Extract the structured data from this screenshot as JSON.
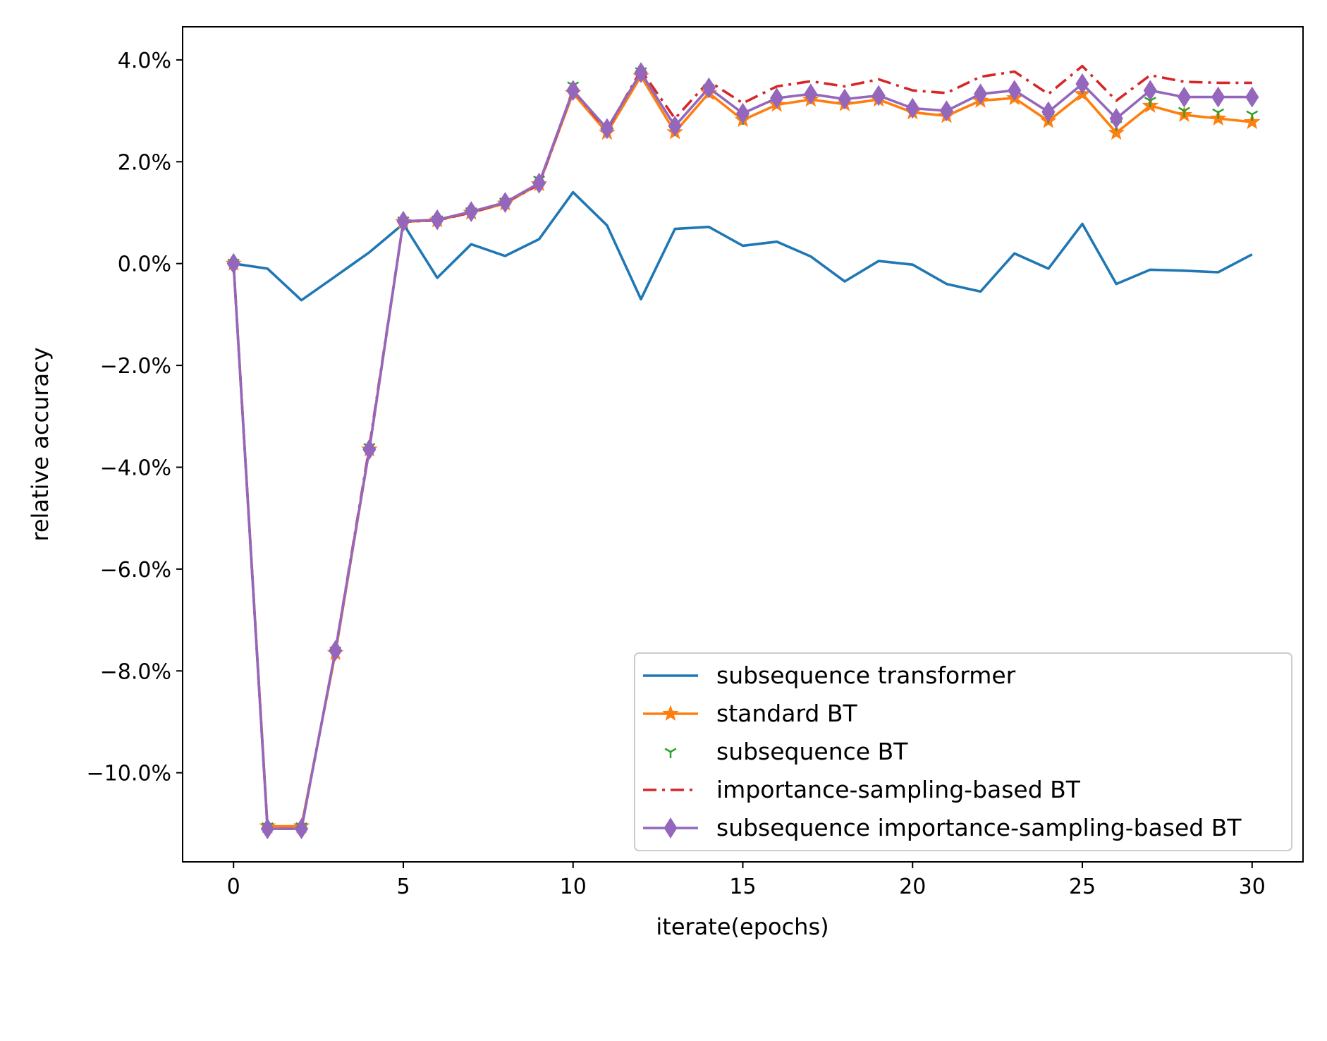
{
  "chart_data": {
    "type": "line",
    "title": "",
    "xlabel": "iterate(epochs)",
    "ylabel": "relative accuracy",
    "xlim": [
      -1.5,
      31.5
    ],
    "ylim": [
      -11.75,
      4.65
    ],
    "x_ticks": [
      0,
      5,
      10,
      15,
      20,
      25,
      30
    ],
    "x_tick_labels": [
      "0",
      "5",
      "10",
      "15",
      "20",
      "25",
      "30"
    ],
    "y_ticks": [
      4,
      2,
      0,
      -2,
      -4,
      -6,
      -8,
      -10
    ],
    "y_tick_labels": [
      "4.0%",
      "2.0%",
      "0.0%",
      "−2.0%",
      "−4.0%",
      "−6.0%",
      "−8.0%",
      "−10.0%"
    ],
    "grid": false,
    "legend_position": "lower-right",
    "x": [
      0,
      1,
      2,
      3,
      4,
      5,
      6,
      7,
      8,
      9,
      10,
      11,
      12,
      13,
      14,
      15,
      16,
      17,
      18,
      19,
      20,
      21,
      22,
      23,
      24,
      25,
      26,
      27,
      28,
      29,
      30
    ],
    "series": [
      {
        "name": "subsequence transformer",
        "color": "#1f77b4",
        "line": "solid",
        "marker": "none",
        "values": [
          0.0,
          -0.1,
          -0.72,
          -0.25,
          0.22,
          0.78,
          -0.28,
          0.38,
          0.15,
          0.48,
          1.4,
          0.75,
          -0.7,
          0.68,
          0.72,
          0.35,
          0.43,
          0.14,
          -0.35,
          0.05,
          -0.02,
          -0.4,
          -0.55,
          0.2,
          -0.1,
          0.78,
          -0.4,
          -0.12,
          -0.14,
          -0.17,
          0.18
        ]
      },
      {
        "name": "standard BT",
        "color": "#ff7f0e",
        "line": "solid",
        "marker": "star",
        "values": [
          0.0,
          -11.05,
          -11.05,
          -7.65,
          -3.65,
          0.82,
          0.85,
          1.0,
          1.18,
          1.56,
          3.35,
          2.57,
          3.68,
          2.58,
          3.35,
          2.82,
          3.12,
          3.22,
          3.13,
          3.22,
          2.97,
          2.9,
          3.2,
          3.25,
          2.8,
          3.33,
          2.57,
          3.1,
          2.92,
          2.85,
          2.78
        ]
      },
      {
        "name": "subsequence BT",
        "color": "#2ca02c",
        "line": "none",
        "marker": "tri",
        "values": [
          0.02,
          -11.05,
          -11.05,
          -7.6,
          -3.6,
          0.85,
          0.87,
          1.03,
          1.22,
          1.65,
          3.5,
          2.6,
          3.78,
          2.65,
          3.45,
          2.85,
          3.2,
          3.28,
          3.18,
          3.26,
          3.0,
          2.95,
          3.28,
          3.35,
          2.88,
          3.45,
          2.73,
          3.2,
          3.0,
          2.97,
          2.93
        ]
      },
      {
        "name": "importance-sampling-based BT",
        "color": "#d62728",
        "line": "dashdot",
        "marker": "none",
        "values": [
          0.0,
          -11.1,
          -11.1,
          -7.6,
          -3.6,
          0.82,
          0.85,
          1.0,
          1.2,
          1.55,
          3.4,
          2.62,
          3.8,
          2.85,
          3.58,
          3.15,
          3.48,
          3.58,
          3.48,
          3.62,
          3.4,
          3.35,
          3.67,
          3.77,
          3.33,
          3.88,
          3.2,
          3.7,
          3.57,
          3.55,
          3.55
        ]
      },
      {
        "name": "subsequence importance-sampling-based BT",
        "color": "#9467bd",
        "line": "solid",
        "marker": "diamond",
        "values": [
          0.0,
          -11.1,
          -11.1,
          -7.6,
          -3.65,
          0.83,
          0.86,
          1.02,
          1.2,
          1.58,
          3.4,
          2.65,
          3.75,
          2.7,
          3.45,
          2.95,
          3.25,
          3.33,
          3.23,
          3.3,
          3.05,
          3.0,
          3.33,
          3.4,
          2.98,
          3.53,
          2.85,
          3.4,
          3.27,
          3.27,
          3.27
        ]
      }
    ]
  }
}
